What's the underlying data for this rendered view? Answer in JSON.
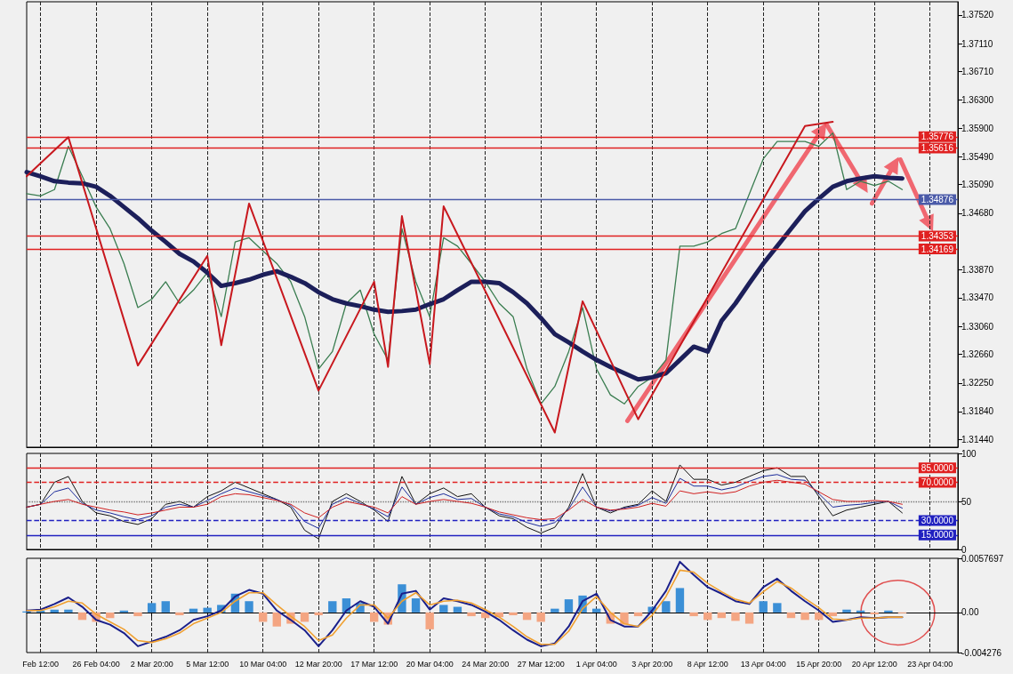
{
  "chart_data": [
    {
      "type": "line",
      "categories": [
        null,
        null,
        null,
        null,
        null,
        null,
        null,
        null,
        null,
        null,
        null,
        null,
        null,
        null,
        null,
        null,
        null,
        null,
        null,
        null,
        null,
        null,
        null,
        null,
        null,
        null,
        null,
        null,
        null,
        null,
        null,
        null,
        null,
        null,
        null,
        null,
        null,
        null,
        null,
        null,
        null,
        null,
        null,
        null,
        null,
        null,
        null,
        null,
        null,
        null,
        null,
        null,
        null,
        null,
        null,
        null,
        null,
        null,
        null,
        null,
        null,
        null,
        null,
        null,
        null,
        null,
        null,
        null
      ],
      "series": [
        {
          "color": "#3a7d50",
          "values": [
            1.3496,
            1.3493,
            1.3502,
            1.3564,
            1.3521,
            1.3477,
            1.3446,
            1.3396,
            1.3333,
            1.3345,
            1.337,
            1.3339,
            1.3358,
            1.3383,
            1.332,
            1.3427,
            1.3433,
            1.3414,
            1.3396,
            1.337,
            1.332,
            1.3245,
            1.327,
            1.3339,
            1.3358,
            1.3295,
            1.3258,
            1.3446,
            1.337,
            1.332,
            1.3433,
            1.3421,
            1.3396,
            1.337,
            1.3339,
            1.332,
            1.3245,
            1.3195,
            1.322,
            1.327,
            1.3333,
            1.3245,
            1.3208,
            1.3195,
            1.322,
            1.3233,
            1.3258,
            1.3421,
            1.3421,
            1.3427,
            1.3439,
            1.3446,
            1.3496,
            1.3546,
            1.3571,
            1.3571,
            1.3571,
            1.3564,
            1.3583,
            1.3502,
            1.3514,
            1.3508,
            1.3514,
            1.3502,
            null,
            null,
            null,
            null
          ]
        },
        {
          "color": "#1c1f5a",
          "values": [
            1.3527,
            1.3521,
            1.3514,
            1.3512,
            1.3511,
            1.3506,
            1.3493,
            1.3477,
            1.3461,
            1.3443,
            1.3427,
            1.341,
            1.3399,
            1.3383,
            1.3364,
            1.3368,
            1.3373,
            1.338,
            1.3385,
            1.3377,
            1.3368,
            1.3355,
            1.3345,
            1.3339,
            1.3335,
            1.333,
            1.3327,
            1.3328,
            1.333,
            1.3338,
            1.3345,
            1.3358,
            1.337,
            1.337,
            1.3368,
            1.3355,
            1.3339,
            1.3318,
            1.3295,
            1.3283,
            1.327,
            1.3258,
            1.3248,
            1.3239,
            1.323,
            1.3233,
            1.3239,
            1.3258,
            1.3277,
            1.327,
            1.3314,
            1.3339,
            1.3368,
            1.3396,
            1.3421,
            1.3446,
            1.3471,
            1.3489,
            1.3506,
            1.3514,
            1.3518,
            1.3521,
            1.3519,
            1.3518,
            null,
            null,
            null,
            null
          ]
        },
        {
          "color": "#c8181e",
          "values": [
            1.3521,
            null,
            null,
            1.3577,
            null,
            null,
            null,
            null,
            1.325,
            null,
            null,
            null,
            null,
            1.3407,
            1.3279,
            null,
            1.3482,
            null,
            null,
            null,
            null,
            1.3214,
            null,
            null,
            null,
            1.337,
            1.3248,
            1.3464,
            null,
            1.3252,
            1.3478,
            null,
            null,
            null,
            null,
            null,
            null,
            null,
            1.3154,
            null,
            1.3342,
            null,
            null,
            null,
            1.3173,
            null,
            null,
            null,
            null,
            null,
            null,
            null,
            null,
            null,
            null,
            null,
            1.3593,
            null,
            1.3599,
            null,
            null,
            null,
            null,
            null,
            null,
            null,
            null,
            null
          ]
        }
      ],
      "ylim": [
        1.3133,
        1.3771
      ],
      "yticks": [
        {
          "value": 1.3144,
          "label": "1.31440"
        },
        {
          "value": 1.3184,
          "label": "1.31840"
        },
        {
          "value": 1.3225,
          "label": "1.32250"
        },
        {
          "value": 1.3266,
          "label": "1.32660"
        },
        {
          "value": 1.3306,
          "label": "1.33060"
        },
        {
          "value": 1.3347,
          "label": "1.33470"
        },
        {
          "value": 1.3387,
          "label": "1.33870"
        },
        {
          "value": 1.3468,
          "label": "1.34680"
        },
        {
          "value": 1.3509,
          "label": "1.35090"
        },
        {
          "value": 1.3549,
          "label": "1.35490"
        },
        {
          "value": 1.359,
          "label": "1.35900"
        },
        {
          "value": 1.363,
          "label": "1.36300"
        },
        {
          "value": 1.3671,
          "label": "1.36710"
        },
        {
          "value": 1.3711,
          "label": "1.37110"
        },
        {
          "value": 1.3752,
          "label": "1.37520"
        }
      ],
      "ref_lines": [
        {
          "axis": "y",
          "value": 1.35776,
          "label": "1.35776",
          "color": "#e02020",
          "line_style": "solid"
        },
        {
          "axis": "y",
          "value": 1.35616,
          "label": "1.35616",
          "color": "#e02020",
          "line_style": "solid"
        },
        {
          "axis": "y",
          "value": 1.34876,
          "label": "1.34876",
          "color": "#4a5aa8",
          "line_style": "solid"
        },
        {
          "axis": "y",
          "value": 1.34353,
          "label": "1.34353",
          "color": "#e02020",
          "line_style": "solid"
        },
        {
          "axis": "y",
          "value": 1.34169,
          "label": "1.34169",
          "color": "#e02020",
          "line_style": "solid"
        }
      ],
      "grid": "x",
      "tick_labels": "y"
    },
    {
      "type": "line",
      "categories": [
        null,
        null,
        null,
        null,
        null,
        null,
        null,
        null,
        null,
        null,
        null,
        null,
        null,
        null,
        null,
        null,
        null,
        null,
        null,
        null,
        null,
        null,
        null,
        null,
        null,
        null,
        null,
        null,
        null,
        null,
        null,
        null,
        null,
        null,
        null,
        null,
        null,
        null,
        null,
        null,
        null,
        null,
        null,
        null,
        null,
        null,
        null,
        null,
        null,
        null,
        null,
        null,
        null,
        null,
        null,
        null,
        null,
        null,
        null,
        null,
        null,
        null,
        null,
        null,
        null,
        null,
        null,
        null
      ],
      "series": [
        {
          "color": "#111111",
          "values": [
            44,
            47,
            70,
            76,
            50,
            38,
            35,
            29,
            26,
            32,
            47,
            50,
            44,
            55,
            61,
            70,
            64,
            58,
            52,
            44,
            20,
            11,
            50,
            58,
            50,
            41,
            29,
            76,
            47,
            58,
            64,
            55,
            58,
            44,
            35,
            32,
            23,
            17,
            23,
            44,
            79,
            44,
            38,
            44,
            47,
            61,
            50,
            88,
            73,
            73,
            67,
            70,
            76,
            82,
            85,
            76,
            76,
            55,
            35,
            41,
            44,
            47,
            50,
            38,
            null,
            null,
            null,
            null
          ]
        },
        {
          "color": "#1a2a9a",
          "values": [
            44,
            47,
            60,
            64,
            48,
            41,
            38,
            34,
            31,
            35,
            44,
            47,
            44,
            51,
            58,
            64,
            60,
            56,
            52,
            46,
            29,
            22,
            47,
            54,
            48,
            42,
            34,
            65,
            47,
            54,
            58,
            52,
            53,
            44,
            37,
            34,
            28,
            24,
            28,
            42,
            65,
            44,
            40,
            43,
            46,
            54,
            48,
            74,
            66,
            66,
            62,
            65,
            71,
            76,
            78,
            73,
            72,
            58,
            44,
            46,
            47,
            49,
            50,
            43,
            null,
            null,
            null,
            null
          ]
        },
        {
          "color": "#d02020",
          "values": [
            44,
            47,
            50,
            52,
            47,
            44,
            41,
            39,
            36,
            38,
            41,
            44,
            44,
            47,
            55,
            58,
            57,
            54,
            51,
            47,
            38,
            33,
            44,
            50,
            47,
            44,
            38,
            55,
            47,
            50,
            52,
            50,
            48,
            44,
            39,
            36,
            33,
            31,
            32,
            41,
            52,
            44,
            41,
            42,
            44,
            48,
            45,
            61,
            58,
            60,
            58,
            60,
            66,
            70,
            72,
            70,
            68,
            60,
            52,
            50,
            50,
            51,
            50,
            47,
            null,
            null,
            null,
            null
          ]
        }
      ],
      "ylim": [
        0,
        100
      ],
      "yticks": [
        0,
        50,
        100
      ],
      "ref_lines": [
        {
          "axis": "y",
          "value": 85,
          "label": "85.0000",
          "color": "#e02020",
          "line_style": "solid"
        },
        {
          "axis": "y",
          "value": 70,
          "label": "70.0000",
          "color": "#e02020",
          "line_style": "dashed"
        },
        {
          "axis": "y",
          "value": 50,
          "label": null,
          "color": "#777777",
          "line_style": "dotted"
        },
        {
          "axis": "y",
          "value": 30,
          "label": "30.0000",
          "color": "#2020c0",
          "line_style": "dashed"
        },
        {
          "axis": "y",
          "value": 15,
          "label": "15.0000",
          "color": "#2020c0",
          "line_style": "solid"
        }
      ],
      "grid": "x",
      "tick_labels": "y"
    },
    {
      "type": "line",
      "categories": [
        null,
        "Feb 12:00",
        null,
        null,
        null,
        "26 Feb 04:00",
        null,
        null,
        null,
        "2 Mar 20:00",
        null,
        null,
        null,
        "5 Mar 12:00",
        null,
        null,
        null,
        "10 Mar 04:00",
        null,
        null,
        null,
        "12 Mar 20:00",
        null,
        null,
        null,
        "17 Mar 12:00",
        null,
        null,
        null,
        "20 Mar 04:00",
        null,
        null,
        null,
        "24 Mar 20:00",
        null,
        null,
        null,
        "27 Mar 12:00",
        null,
        null,
        null,
        "1 Apr 04:00",
        null,
        null,
        null,
        "3 Apr 20:00",
        null,
        null,
        null,
        "8 Apr 12:00",
        null,
        null,
        null,
        "13 Apr 04:00",
        null,
        null,
        null,
        "15 Apr 20:00",
        null,
        null,
        null,
        "20 Apr 12:00",
        null,
        null,
        null,
        "23 Apr 04:00",
        null,
        null
      ],
      "series": [
        {
          "type": "bar",
          "colors": [
            "#3b8fd6",
            "#3b8fd6",
            "#3b8fd6",
            "#3b8fd6",
            "#f4a582",
            "#f4a582",
            "#f4a582",
            "#3b8fd6",
            "#f4a582",
            "#3b8fd6",
            "#3b8fd6",
            "#f4a582",
            "#3b8fd6",
            "#3b8fd6",
            "#3b8fd6",
            "#3b8fd6",
            "#3b8fd6",
            "#f4a582",
            "#f4a582",
            "#f4a582",
            "#f4a582",
            "#f4a582",
            "#3b8fd6",
            "#3b8fd6",
            "#3b8fd6",
            "#f4a582",
            "#f4a582",
            "#3b8fd6",
            "#3b8fd6",
            "#f4a582",
            "#3b8fd6",
            "#3b8fd6",
            "#f4a582",
            "#f4a582",
            "#f4a582",
            "#f4a582",
            "#f4a582",
            "#f4a582",
            "#3b8fd6",
            "#3b8fd6",
            "#3b8fd6",
            "#3b8fd6",
            "#f4a582",
            "#f4a582",
            "#f4a582",
            "#3b8fd6",
            "#3b8fd6",
            "#3b8fd6",
            "#f4a582",
            "#f4a582",
            "#f4a582",
            "#f4a582",
            "#f4a582",
            "#3b8fd6",
            "#3b8fd6",
            "#f4a582",
            "#f4a582",
            "#f4a582",
            "#f4a582",
            "#3b8fd6",
            "#3b8fd6",
            "#f4a582",
            "#3b8fd6",
            "#f4a582",
            null,
            null,
            null,
            null
          ],
          "values": [
            0.0001,
            0.0002,
            0.0003,
            0.0003,
            -0.0008,
            -0.001,
            -0.0006,
            0.0002,
            -0.0004,
            0.001,
            0.0012,
            -0.0003,
            0.0004,
            0.0005,
            0.0008,
            0.002,
            0.0012,
            -0.001,
            -0.0015,
            -0.0012,
            -0.001,
            -0.0003,
            0.0012,
            0.0015,
            0.001,
            -0.001,
            -0.0013,
            0.003,
            0.0015,
            -0.0018,
            0.0008,
            0.0006,
            -0.0004,
            -0.0006,
            -0.0005,
            -0.0003,
            -0.0008,
            -0.001,
            0.0004,
            0.0014,
            0.0018,
            0.0004,
            -0.0012,
            -0.0013,
            -0.0004,
            0.0006,
            0.0012,
            0.0026,
            -0.0004,
            -0.0008,
            -0.0006,
            -0.0009,
            -0.0012,
            0.0012,
            0.001,
            -0.0006,
            -0.0008,
            -0.0008,
            -0.0004,
            0.0003,
            0.0002,
            -0.0002,
            0.0002,
            -0.0001,
            null,
            null,
            null,
            null
          ]
        },
        {
          "color": "#1a1f8a",
          "values": [
            0.0002,
            0.0003,
            0.0009,
            0.0016,
            0.0006,
            -0.0008,
            -0.0013,
            -0.0022,
            -0.0036,
            -0.0031,
            -0.0026,
            -0.0019,
            -0.0008,
            -0.0004,
            0.0002,
            0.0017,
            0.0024,
            0.002,
            0.0002,
            -0.0008,
            -0.0019,
            -0.0036,
            -0.0019,
            0.0002,
            0.0012,
            0.0006,
            -0.0012,
            0.002,
            0.0023,
            0.0003,
            0.0015,
            0.0012,
            0.0008,
            0.0001,
            -0.0008,
            -0.0019,
            -0.0029,
            -0.0036,
            -0.0033,
            -0.0015,
            0.0012,
            0.002,
            -0.0008,
            -0.0015,
            -0.0015,
            0.0002,
            0.0023,
            0.0054,
            0.004,
            0.0027,
            0.002,
            0.0012,
            0.0009,
            0.0027,
            0.0036,
            0.0023,
            0.0012,
            0.0002,
            -0.001,
            -0.0008,
            -0.0005,
            -0.0006,
            -0.0005,
            -0.0005,
            null,
            null,
            null,
            null
          ]
        },
        {
          "color": "#f0a030",
          "values": [
            0.0002,
            0.0002,
            0.0006,
            0.0012,
            0.001,
            -0.0002,
            -0.001,
            -0.0018,
            -0.003,
            -0.0032,
            -0.0028,
            -0.0022,
            -0.0012,
            -0.0006,
            0.0,
            0.0012,
            0.0021,
            0.0021,
            0.0008,
            -0.0004,
            -0.0015,
            -0.003,
            -0.0024,
            -0.0006,
            0.0008,
            0.0008,
            -0.0006,
            0.0012,
            0.0021,
            0.0008,
            0.0012,
            0.0013,
            0.001,
            0.0003,
            -0.0005,
            -0.0015,
            -0.0026,
            -0.0034,
            -0.0034,
            -0.002,
            0.0004,
            0.0017,
            0.0,
            -0.0012,
            -0.0015,
            -0.0003,
            0.0017,
            0.0045,
            0.0043,
            0.0031,
            0.0022,
            0.0014,
            0.001,
            0.0022,
            0.0033,
            0.0026,
            0.0015,
            0.0005,
            -0.0007,
            -0.0008,
            -0.0006,
            -0.0006,
            -0.0005,
            -0.0005,
            null,
            null,
            null,
            null
          ]
        }
      ],
      "ylim": [
        -0.004276,
        0.0057697
      ],
      "yticks": [
        -0.004276,
        {
          "value": 0,
          "label": "0.00"
        },
        0.0057697
      ],
      "grid": "x"
    }
  ]
}
